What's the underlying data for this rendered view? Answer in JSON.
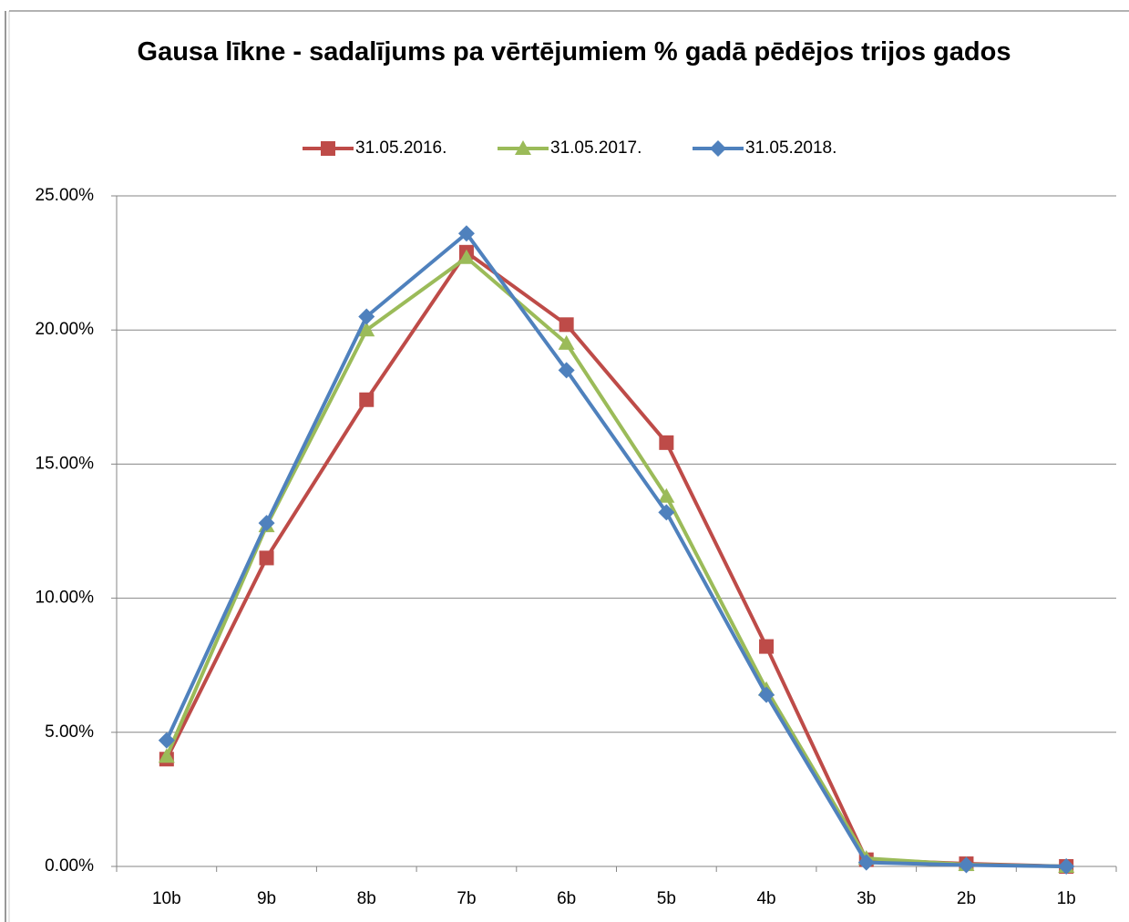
{
  "chart_data": {
    "type": "line",
    "title": "Gausa līkne - sadalījums pa vērtējumiem % gadā pēdējos trijos gados",
    "categories": [
      "10b",
      "9b",
      "8b",
      "7b",
      "6b",
      "5b",
      "4b",
      "3b",
      "2b",
      "1b"
    ],
    "series": [
      {
        "name": "31.05.2016.",
        "color": "#be4b48",
        "marker": "square",
        "values": [
          4.0,
          11.5,
          17.4,
          22.9,
          20.2,
          15.8,
          8.2,
          0.25,
          0.1,
          0.0
        ]
      },
      {
        "name": "31.05.2017.",
        "color": "#9bbb59",
        "marker": "triangle",
        "values": [
          4.1,
          12.7,
          20.0,
          22.7,
          19.5,
          13.8,
          6.6,
          0.3,
          0.07,
          0.0
        ]
      },
      {
        "name": "31.05.2018.",
        "color": "#4f81bd",
        "marker": "diamond",
        "values": [
          4.7,
          12.8,
          20.5,
          23.6,
          18.5,
          13.2,
          6.4,
          0.15,
          0.05,
          0.0
        ]
      }
    ],
    "ylim": [
      0,
      25
    ],
    "yticks": [
      {
        "value": 0,
        "label": "0.00%"
      },
      {
        "value": 5,
        "label": "5.00%"
      },
      {
        "value": 10,
        "label": "10.00%"
      },
      {
        "value": 15,
        "label": "15.00%"
      },
      {
        "value": 20,
        "label": "20.00%"
      },
      {
        "value": 25,
        "label": "25.00%"
      }
    ],
    "grid": true,
    "legend": "top"
  }
}
